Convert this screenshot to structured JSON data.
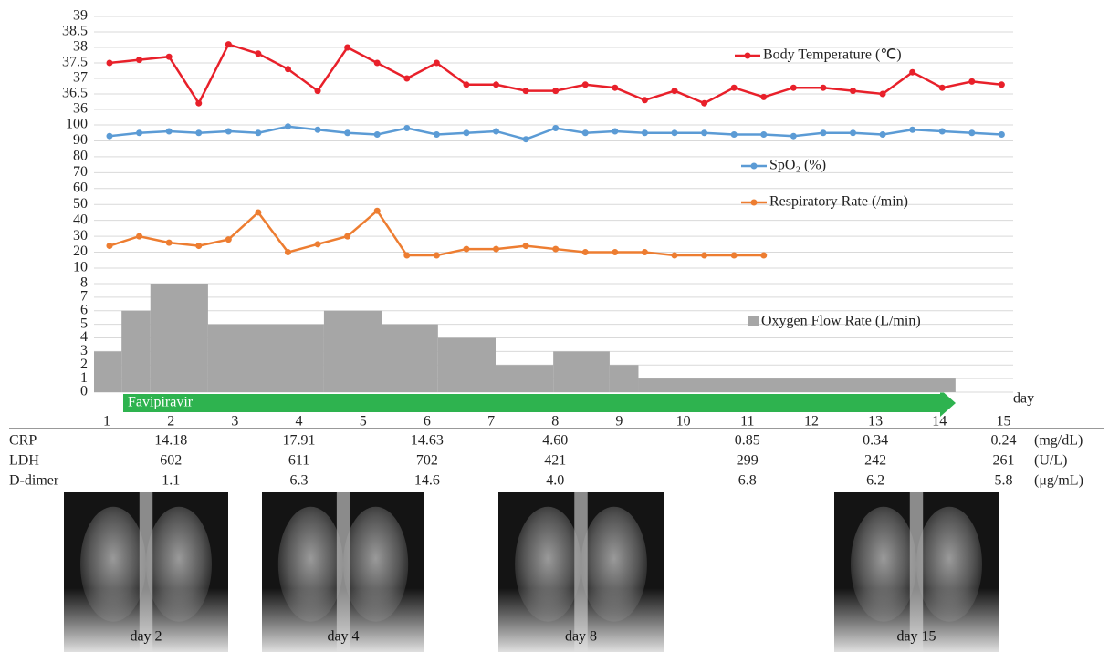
{
  "chart_data": {
    "type": "line",
    "xlim": [
      0.8,
      15.15
    ],
    "xticks": [
      1,
      2,
      3,
      4,
      5,
      6,
      7,
      8,
      9,
      10,
      11,
      12,
      13,
      14,
      15
    ],
    "xlabel": "day",
    "grid": true,
    "annotation": "Favipiravir",
    "panels": [
      {
        "ylim": [
          36,
          39
        ],
        "yticks": [
          36,
          36.5,
          37,
          37.5,
          38,
          38.5,
          39
        ],
        "series": [
          {
            "name": "Body Temperature (℃)",
            "color": "#e8202a",
            "values": [
              37.5,
              37.6,
              37.7,
              36.2,
              38.1,
              37.8,
              37.3,
              36.6,
              38.0,
              37.5,
              37.0,
              37.5,
              36.8,
              36.8,
              36.6,
              36.6,
              36.8,
              36.7,
              36.3,
              36.6,
              36.2,
              36.7,
              36.4,
              36.7,
              36.7,
              36.6,
              36.5,
              37.2,
              36.7,
              36.9,
              36.8
            ]
          }
        ]
      },
      {
        "ylim": [
          10,
          100
        ],
        "yticks": [
          10,
          20,
          30,
          40,
          50,
          60,
          70,
          80,
          90,
          100
        ],
        "series": [
          {
            "name": "SpO₂ (%)",
            "color": "#5b9bd5",
            "values": [
              93,
              95,
              96,
              95,
              96,
              95,
              99,
              97,
              95,
              94,
              98,
              94,
              95,
              96,
              91,
              98,
              95,
              96,
              95,
              95,
              95,
              94,
              94,
              93,
              95,
              95,
              94,
              97,
              96,
              95,
              94
            ]
          },
          {
            "name": "Respiratory Rate (/min)",
            "color": "#ed7d31",
            "values": [
              24,
              30,
              26,
              24,
              28,
              45,
              20,
              25,
              30,
              46,
              18,
              18,
              22,
              22,
              24,
              22,
              20,
              20,
              20,
              18,
              18,
              18,
              18
            ]
          }
        ]
      },
      {
        "ylim": [
          0,
          8
        ],
        "yticks": [
          0,
          1,
          2,
          3,
          4,
          5,
          6,
          7,
          8
        ],
        "series": [
          {
            "name": "Oxygen Flow Rate (L/min)",
            "type": "bar",
            "color": "#a6a6a6",
            "bins": [
              0.8,
              1.23,
              1.68,
              2.58,
              4.39,
              5.29,
              6.17,
              7.07,
              7.97,
              8.85,
              9.3,
              14.25
            ],
            "values": [
              3,
              6,
              8,
              5,
              6,
              5,
              4,
              2,
              3,
              2,
              1
            ]
          }
        ]
      }
    ]
  },
  "lab_table": {
    "rows": [
      {
        "name": "CRP",
        "unit": "(mg/dL)",
        "values": [
          null,
          "14.18",
          null,
          "17.91",
          null,
          "14.63",
          null,
          "4.60",
          null,
          null,
          "0.85",
          null,
          "0.34",
          null,
          "0.24"
        ]
      },
      {
        "name": "LDH",
        "unit": "(U/L)",
        "values": [
          null,
          "602",
          null,
          "611",
          null,
          "702",
          null,
          "421",
          null,
          null,
          "299",
          null,
          "242",
          null,
          "261"
        ]
      },
      {
        "name": "D-dimer",
        "unit": "(μg/mL)",
        "values": [
          null,
          "1.1",
          null,
          "6.3",
          null,
          "14.6",
          null,
          "4.0",
          null,
          null,
          "6.8",
          null,
          "6.2",
          null,
          "5.8"
        ]
      }
    ]
  },
  "xrays": [
    {
      "caption": "day 2"
    },
    {
      "caption": "day 4"
    },
    {
      "caption": "day 8"
    },
    {
      "caption": "day 15"
    }
  ]
}
